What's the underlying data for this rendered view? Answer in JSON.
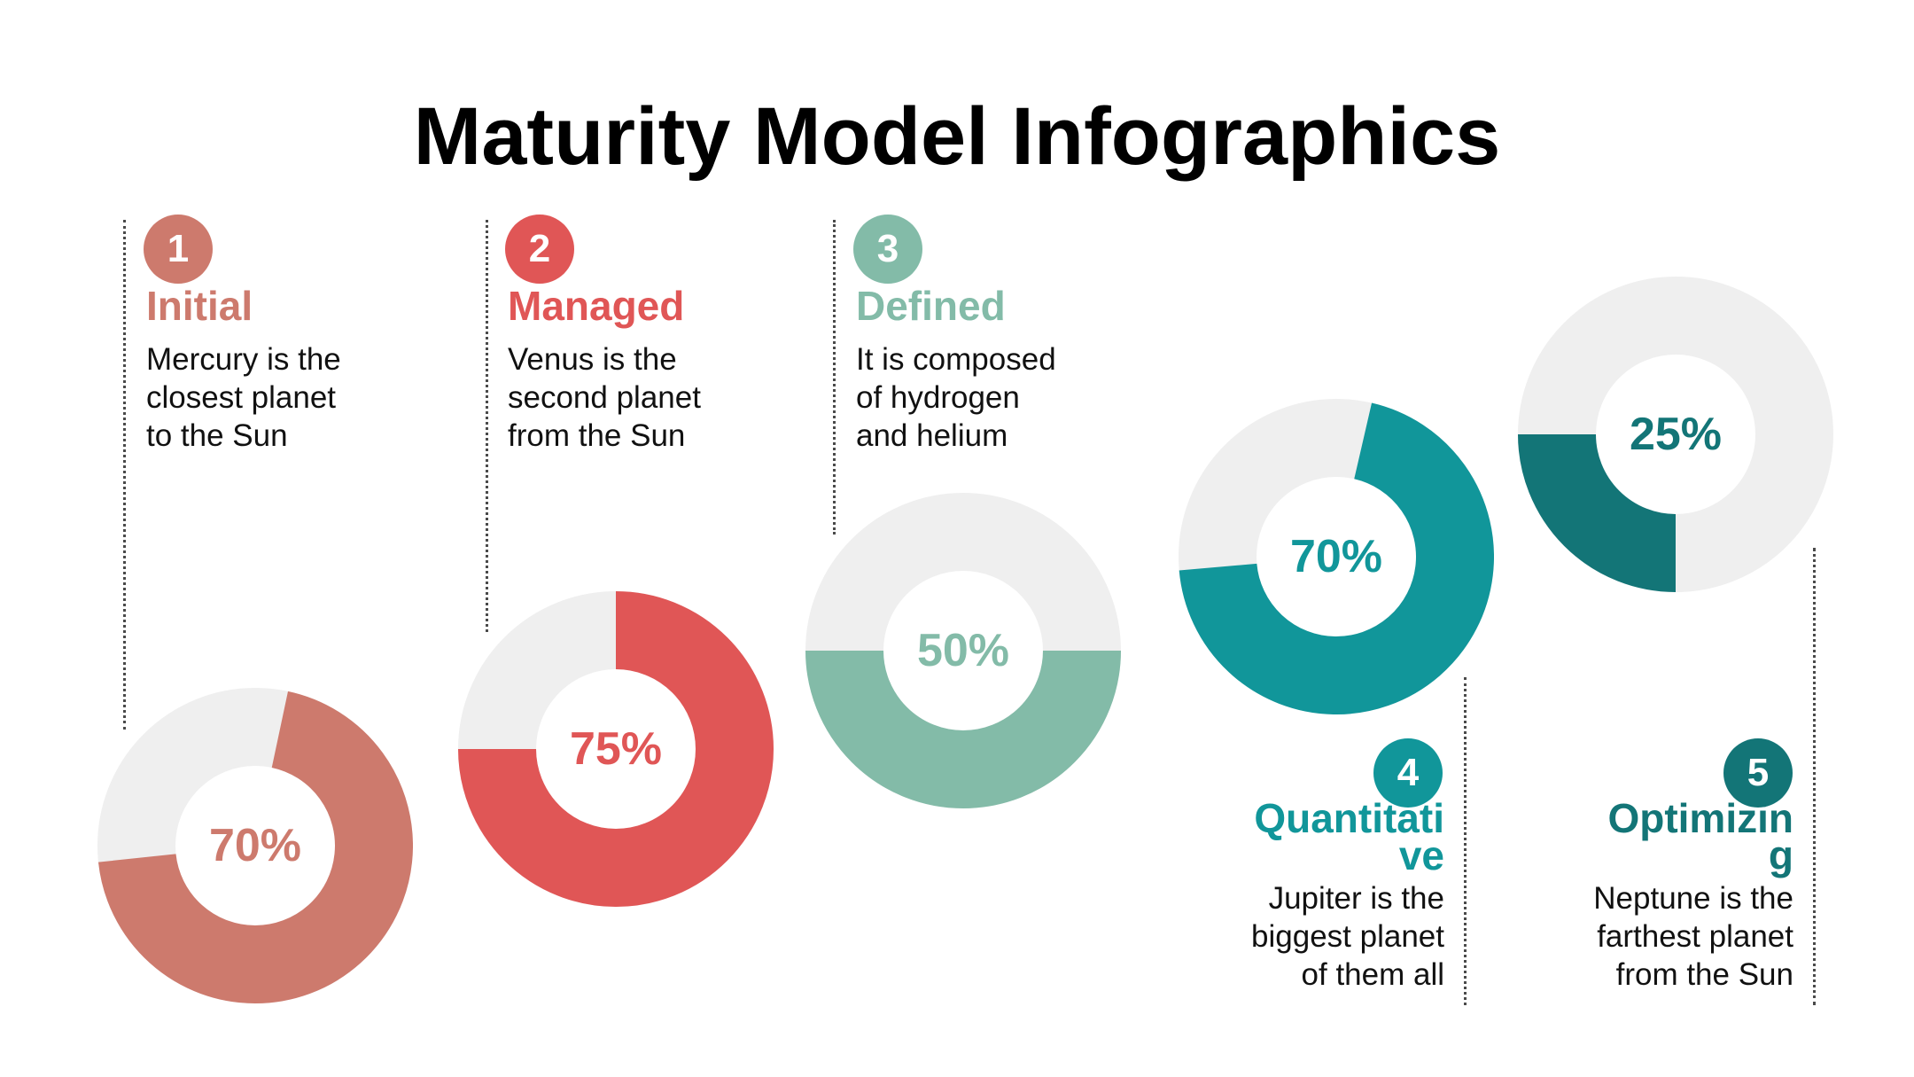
{
  "title": "Maturity Model Infographics",
  "colors": {
    "track": "#efefef",
    "initial": "#cd7a6d",
    "managed": "#e05656",
    "defined": "#83bba8",
    "quantitative": "#11969a",
    "optimizing": "#137577"
  },
  "stages": [
    {
      "number": "1",
      "name": "Initial",
      "lines": [
        "Mercury is the",
        "closest planet",
        "to the Sun"
      ],
      "percent": 70,
      "percent_label": "70%"
    },
    {
      "number": "2",
      "name": "Managed",
      "lines": [
        "Venus is the",
        "second planet",
        "from the Sun"
      ],
      "percent": 75,
      "percent_label": "75%"
    },
    {
      "number": "3",
      "name": "Defined",
      "lines": [
        "It is composed",
        "of hydrogen",
        "and helium"
      ],
      "percent": 50,
      "percent_label": "50%"
    },
    {
      "number": "4",
      "name_lines": [
        "Quantitati",
        "ve"
      ],
      "lines": [
        "Jupiter is the",
        "biggest planet",
        "of them all"
      ],
      "percent": 70,
      "percent_label": "70%"
    },
    {
      "number": "5",
      "name_lines": [
        "Optimizin",
        "g"
      ],
      "lines": [
        "Neptune is the",
        "farthest planet",
        "from the Sun"
      ],
      "percent": 25,
      "percent_label": "25%"
    }
  ]
}
